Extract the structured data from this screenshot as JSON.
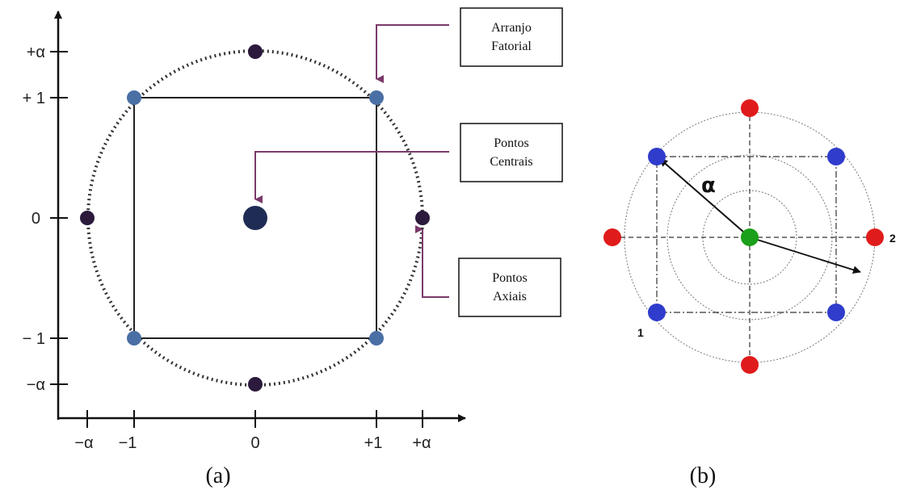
{
  "panel_a": {
    "x_ticks": [
      "−α",
      "−1",
      "0",
      "+1",
      "+α"
    ],
    "y_ticks": [
      "+α",
      "+ 1",
      "0",
      "− 1",
      "−α"
    ],
    "callouts": [
      {
        "line1": "Arranjo",
        "line2": "Fatorial"
      },
      {
        "line1": "Pontos",
        "line2": "Centrais"
      },
      {
        "line1": "Pontos",
        "line2": "Axiais"
      }
    ],
    "caption": "(a)",
    "colors": {
      "factorial": "#4a6fa5",
      "axial": "#2b1a3c",
      "center": "#1f2d55",
      "callout_line": "#7a3a6a",
      "circle": "#333333"
    }
  },
  "panel_b": {
    "alpha_label": "α",
    "axis1_label": "1",
    "axis2_label": "2",
    "caption": "(b)",
    "colors": {
      "factorial": "#2f3ccc",
      "axial": "#e01b1b",
      "center": "#1aa01a"
    }
  }
}
